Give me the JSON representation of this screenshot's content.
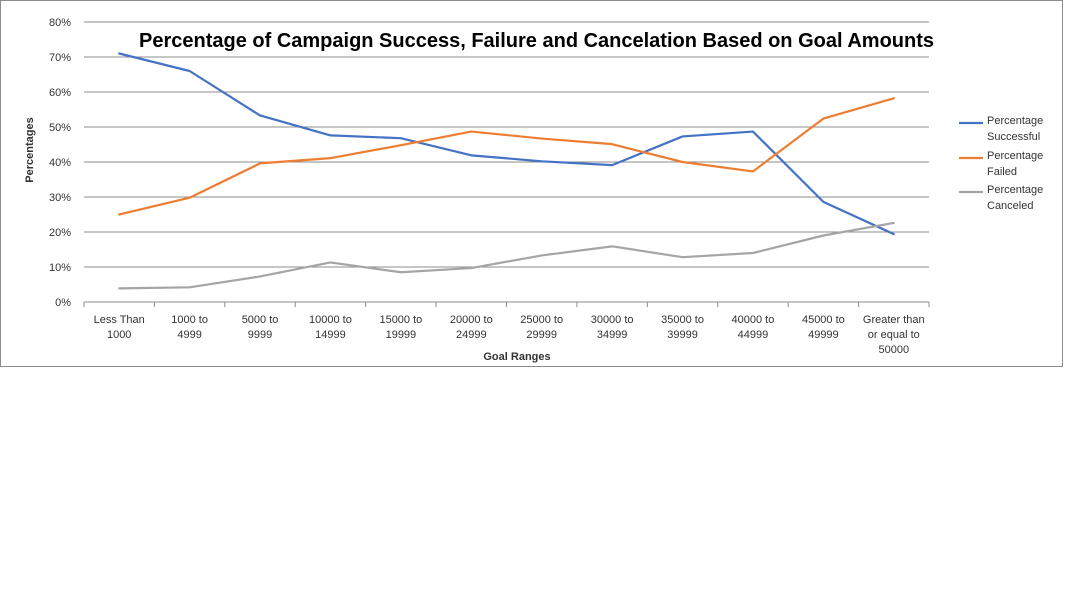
{
  "chart_data": {
    "type": "line",
    "title": "Percentage of Campaign Success, Failure and Cancelation Based on Goal Amounts",
    "xlabel": "Goal Ranges",
    "ylabel": "Percentages",
    "ylim": [
      0,
      80
    ],
    "y_ticks": [
      "0%",
      "10%",
      "20%",
      "30%",
      "40%",
      "50%",
      "60%",
      "70%",
      "80%"
    ],
    "grid": "horizontal",
    "legend_position": "right",
    "categories": [
      [
        "Less Than",
        "1000"
      ],
      [
        "1000 to",
        "4999"
      ],
      [
        "5000 to",
        "9999"
      ],
      [
        "10000 to",
        "14999"
      ],
      [
        "15000 to",
        "19999"
      ],
      [
        "20000 to",
        "24999"
      ],
      [
        "25000 to",
        "29999"
      ],
      [
        "30000 to",
        "34999"
      ],
      [
        "35000 to",
        "39999"
      ],
      [
        "40000 to",
        "44999"
      ],
      [
        "45000 to",
        "49999"
      ],
      [
        "Greater than",
        "or equal to",
        "50000"
      ]
    ],
    "series": [
      {
        "name": [
          "Percentage",
          "Successful"
        ],
        "color": "#4472c4",
        "values": [
          71,
          66,
          53.3,
          47.6,
          46.8,
          41.9,
          40.2,
          39.1,
          47.3,
          48.7,
          28.6,
          19.4
        ]
      },
      {
        "name": [
          "Percentage",
          "Failed"
        ],
        "color": "#ed7d31",
        "values": [
          25,
          29.8,
          39.6,
          41.1,
          44.8,
          48.7,
          46.7,
          45.1,
          40,
          37.3,
          52.4,
          58.2
        ]
      },
      {
        "name": [
          "Percentage",
          "Canceled"
        ],
        "color": "#a5a5a5",
        "values": [
          3.9,
          4.2,
          7.3,
          11.3,
          8.5,
          9.7,
          13.3,
          15.9,
          12.8,
          14,
          19,
          22.6
        ]
      }
    ]
  }
}
